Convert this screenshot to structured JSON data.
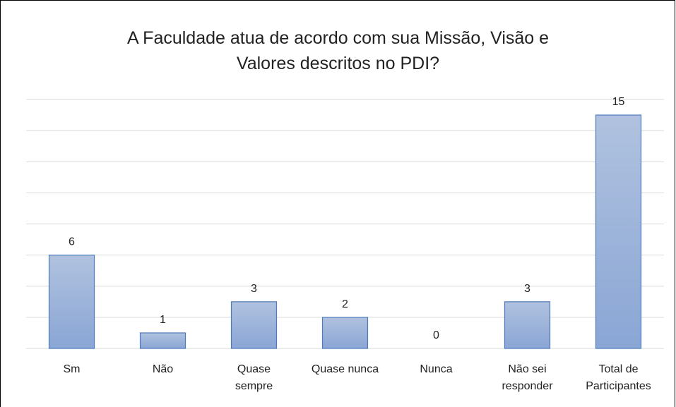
{
  "chart_data": {
    "type": "bar",
    "title": "A Faculdade atua de acordo com sua Missão, Visão e\nValores descritos no PDI?",
    "categories": [
      "Sm",
      "Não",
      "Quase\nsempre",
      "Quase nunca",
      "Nunca",
      "Não sei\nresponder",
      "Total de\nParticipantes"
    ],
    "values": [
      6,
      1,
      3,
      2,
      0,
      3,
      15
    ],
    "color": "#8faadc",
    "ylim": [
      0,
      16
    ],
    "yticks": [
      0,
      2,
      4,
      6,
      8,
      10,
      12,
      14,
      16
    ],
    "grid": true
  }
}
